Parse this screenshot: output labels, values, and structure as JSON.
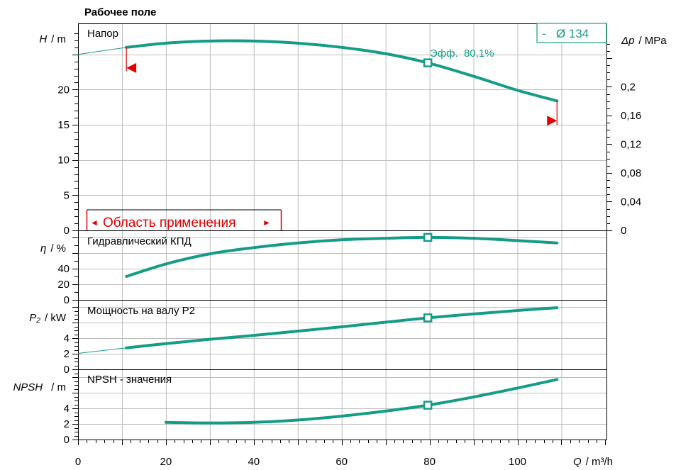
{
  "title": "Рабочее поле",
  "colors": {
    "curve": "#149c86",
    "range": "#e00000",
    "grid": "#bdbdbd",
    "axis": "#000000"
  },
  "legend": {
    "label": "-   Ø 134",
    "efficiency": "Эфф.  80,1%"
  },
  "range_label": "Область применения",
  "range_arrow_left": "◄",
  "range_arrow_right": "►",
  "x_axis": {
    "symbol": "Q",
    "unit": "/ m³/h",
    "ticks": [
      "0",
      "20",
      "40",
      "60",
      "80",
      "100"
    ]
  },
  "panels": {
    "head": {
      "label": "Напор",
      "axis_symbol": "H",
      "axis_unit": "/ m",
      "ticks": [
        "0",
        "5",
        "10",
        "15",
        "20"
      ],
      "right_symbol": "Δp",
      "right_unit": "/ MPa",
      "right_ticks": [
        "0",
        "0,04",
        "0,08",
        "0,12",
        "0,16",
        "0,2"
      ]
    },
    "eff": {
      "label": "Гидравлический КПД",
      "axis_symbol": "η",
      "axis_unit": "/ %",
      "ticks": [
        "0",
        "20",
        "40"
      ]
    },
    "power": {
      "label": "Мощность на валу P2",
      "axis_symbol": "P₂",
      "axis_unit": "/ kW",
      "ticks": [
        "0",
        "2",
        "4"
      ]
    },
    "npsh": {
      "label": "NPSH - значения",
      "axis_symbol": "NPSH",
      "axis_unit": "/ m",
      "ticks": [
        "0",
        "2",
        "4"
      ]
    }
  },
  "chart_data": {
    "type": "line",
    "x_label": "Q / m³/h",
    "xlim": [
      0,
      118
    ],
    "operating_point": {
      "Q": 79.6,
      "H": 23.8,
      "eta": 80.1,
      "P2": 6.6,
      "NPSH": 4.4
    },
    "application_range": {
      "Q_min": 11,
      "Q_max": 109
    },
    "curves": [
      {
        "name": "Напор",
        "y_label": "H / m",
        "ylim": [
          0,
          28
        ],
        "y2_label": "Δp / MPa",
        "x": [
          11,
          20,
          30,
          40,
          50,
          60,
          70,
          79.6,
          90,
          100,
          109
        ],
        "y": [
          26.0,
          26.6,
          26.9,
          26.9,
          26.6,
          26.0,
          25.1,
          23.8,
          21.9,
          19.9,
          18.4
        ],
        "extrapolation": {
          "x": [
            0,
            11
          ],
          "y": [
            25.0,
            26.0
          ]
        }
      },
      {
        "name": "Гидравлический КПД",
        "y_label": "η / %",
        "ylim": [
          0,
          90
        ],
        "x": [
          11,
          20,
          30,
          40,
          50,
          60,
          70,
          79.6,
          90,
          100,
          109
        ],
        "y": [
          30,
          46,
          59,
          67,
          73,
          77,
          79,
          80.1,
          79,
          76,
          73
        ]
      },
      {
        "name": "Мощность на валу P2",
        "y_label": "P2 / kW",
        "ylim": [
          0,
          8.5
        ],
        "x": [
          11,
          20,
          30,
          40,
          50,
          60,
          70,
          79.6,
          90,
          100,
          109
        ],
        "y": [
          2.75,
          3.3,
          3.85,
          4.35,
          4.9,
          5.45,
          6.05,
          6.6,
          7.1,
          7.55,
          7.9
        ],
        "extrapolation": {
          "x": [
            0,
            11
          ],
          "y": [
            2.05,
            2.75
          ]
        }
      },
      {
        "name": "NPSH - значения",
        "y_label": "NPSH / m",
        "ylim": [
          0,
          8.5
        ],
        "x": [
          20,
          30,
          40,
          50,
          60,
          70,
          79.6,
          90,
          100,
          109
        ],
        "y": [
          2.2,
          2.12,
          2.2,
          2.5,
          3.0,
          3.65,
          4.4,
          5.45,
          6.6,
          7.7
        ]
      }
    ]
  }
}
